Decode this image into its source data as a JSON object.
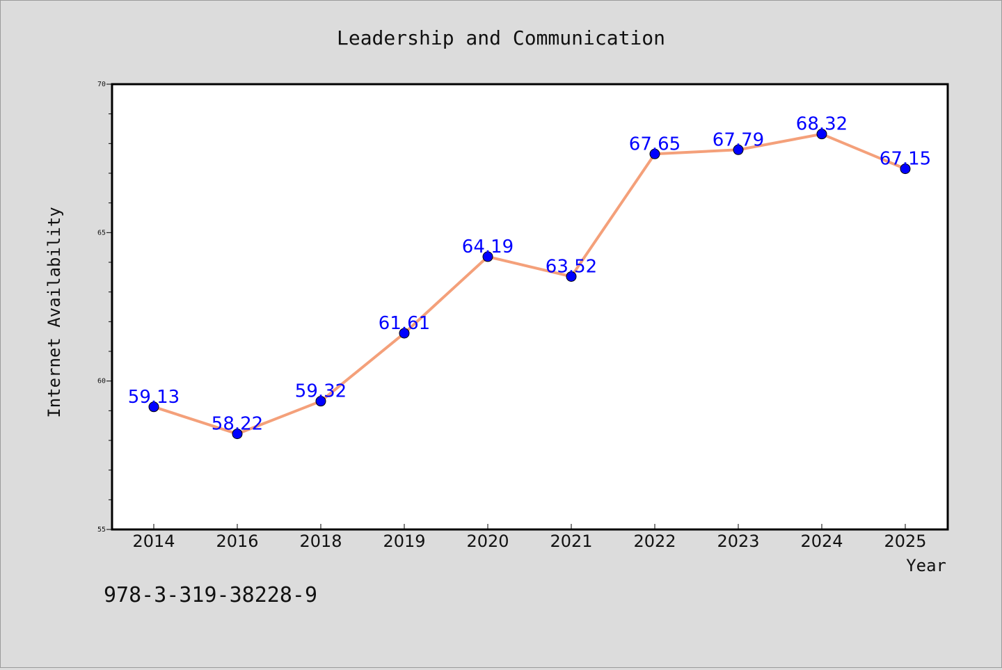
{
  "chart_data": {
    "type": "line",
    "title": "Leadership and Communication",
    "xlabel": "Year",
    "ylabel": "Internet Availability",
    "categories": [
      "2014",
      "2016",
      "2018",
      "2019",
      "2020",
      "2021",
      "2022",
      "2023",
      "2024",
      "2025"
    ],
    "series": [
      {
        "values": [
          59.13,
          58.22,
          59.32,
          61.61,
          64.19,
          63.52,
          67.65,
          67.79,
          68.32,
          67.15
        ],
        "line_color": "#f4a07a",
        "marker_color": "#0000ff"
      }
    ],
    "data_labels": [
      "59.13",
      "58.22",
      "59.32",
      "61.61",
      "64.19",
      "63.52",
      "67.65",
      "67.79",
      "68.32",
      "67.15"
    ],
    "ylim": [
      55,
      70
    ],
    "y_ticks": [
      "55",
      "60",
      "65",
      "70"
    ],
    "grid": false,
    "label_color": "#0000ff"
  },
  "footer": {
    "isbn": "978-3-319-38228-9"
  }
}
